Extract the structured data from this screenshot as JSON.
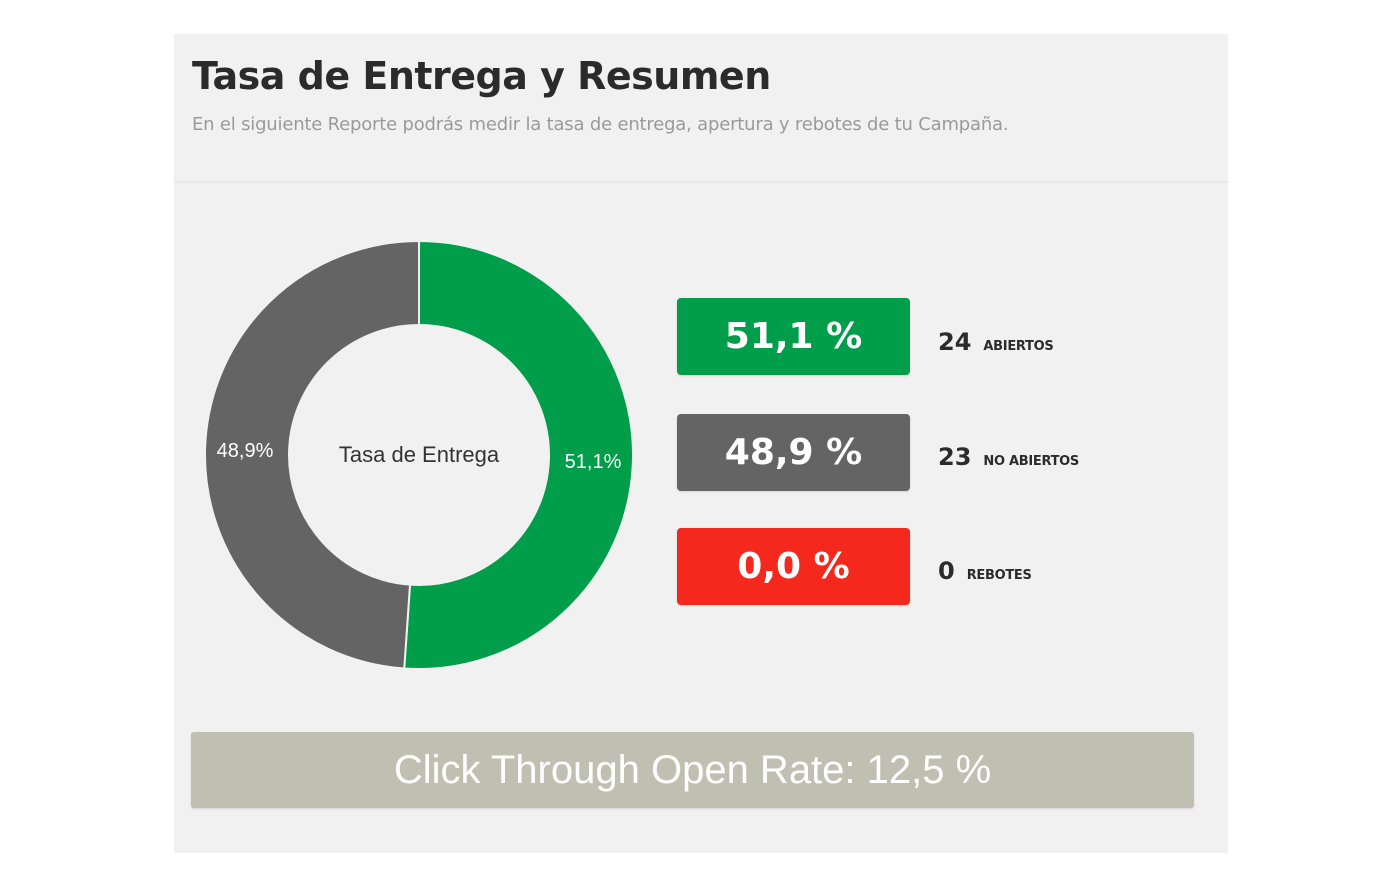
{
  "header": {
    "title": "Tasa de Entrega y Resumen",
    "subtitle": "En el siguiente Reporte podrás medir la tasa de entrega, apertura y rebotes de tu Campaña."
  },
  "chart_data": {
    "type": "pie",
    "variant": "donut",
    "center_label": "Tasa de Entrega",
    "slices": [
      {
        "name": "Abiertos",
        "value": 51.1,
        "label": "51,1%",
        "color": "#009d4a"
      },
      {
        "name": "No abiertos",
        "value": 48.9,
        "label": "48,9%",
        "color": "#646464"
      }
    ],
    "start_angle": "top",
    "direction": "clockwise"
  },
  "stats": [
    {
      "percent": "51,1 %",
      "count": "24",
      "label": "ABIERTOS",
      "color": "#009d4a"
    },
    {
      "percent": "48,9 %",
      "count": "23",
      "label": "NO ABIERTOS",
      "color": "#646464"
    },
    {
      "percent": "0,0 %",
      "count": "0",
      "label": "REBOTES",
      "color": "#f5281e"
    }
  ],
  "ctor": {
    "text": "Click Through Open Rate: 12,5 %",
    "color": "#bfbfb2"
  }
}
